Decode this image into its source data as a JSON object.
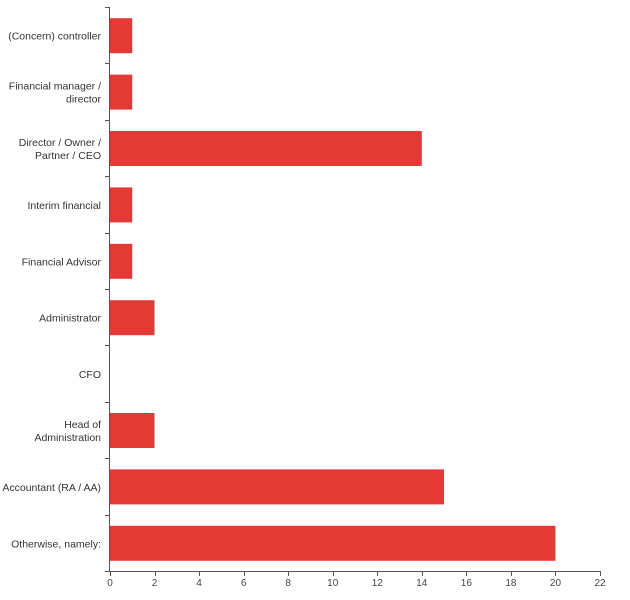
{
  "chart_data": {
    "type": "bar",
    "orientation": "horizontal",
    "title": "",
    "xlabel": "",
    "ylabel": "",
    "categories": [
      "(Concern) controller",
      "Financial manager / director",
      "Director / Owner / Partner / CEO",
      "Interim financial",
      "Financial Advisor",
      "Administrator",
      "CFO",
      "Head of Administration",
      "Accountant (RA / AA)",
      "Otherwise, namely:"
    ],
    "category_lines": [
      [
        "(Concern) controller"
      ],
      [
        "Financial manager /",
        "director"
      ],
      [
        "Director / Owner /",
        "Partner / CEO"
      ],
      [
        "Interim financial"
      ],
      [
        "Financial Advisor"
      ],
      [
        "Administrator"
      ],
      [
        "CFO"
      ],
      [
        "Head of",
        "Administration"
      ],
      [
        "Accountant (RA / AA)"
      ],
      [
        "Otherwise, namely:"
      ]
    ],
    "values": [
      1,
      1,
      14,
      1,
      1,
      2,
      0,
      2,
      15,
      20
    ],
    "xlim": [
      0,
      22
    ],
    "xticks": [
      0,
      2,
      4,
      6,
      8,
      10,
      12,
      14,
      16,
      18,
      20,
      22
    ],
    "bar_color": "#e53935",
    "grid": false,
    "legend": "none"
  }
}
